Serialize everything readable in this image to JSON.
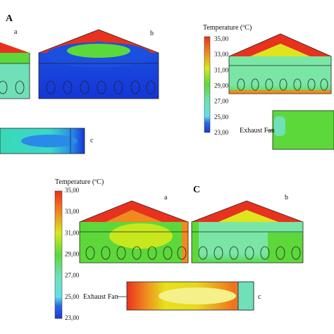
{
  "panel_top": {
    "label": "A",
    "view_a": "a",
    "view_b": "b",
    "view_c": "c"
  },
  "legend_top": {
    "title": "Temperature (ºC)",
    "ticks": [
      "35,00",
      "33,00",
      "31,00",
      "29,00",
      "27,00",
      "25,00",
      "23,00"
    ]
  },
  "exhaust_top": "Exhaust Fan",
  "legend_bottom": {
    "title": "Temperature (ºC)",
    "ticks": [
      "35,00",
      "33,00",
      "31,00",
      "29,00",
      "27,00",
      "25,00",
      "23,00"
    ]
  },
  "panel_bottom": {
    "label": "C",
    "view_a": "a",
    "view_b": "b",
    "view_c": "c",
    "exhaust": "Exhaust Fan"
  }
}
